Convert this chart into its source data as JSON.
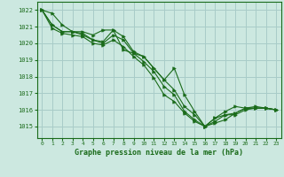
{
  "title": "Graphe pression niveau de la mer (hPa)",
  "background_color": "#cce8e0",
  "grid_color": "#a8ccc8",
  "line_color": "#1a6b1a",
  "x_ticks": [
    0,
    1,
    2,
    3,
    4,
    5,
    6,
    7,
    8,
    9,
    10,
    11,
    12,
    13,
    14,
    15,
    16,
    17,
    18,
    19,
    20,
    21,
    22,
    23
  ],
  "y_ticks": [
    1015,
    1016,
    1017,
    1018,
    1019,
    1020,
    1021,
    1022
  ],
  "ylim": [
    1014.3,
    1022.5
  ],
  "xlim": [
    -0.5,
    23.5
  ],
  "series": [
    [
      1022.0,
      1021.8,
      1021.1,
      1020.7,
      1020.7,
      1020.5,
      1020.8,
      1020.8,
      1020.4,
      1019.5,
      1019.2,
      1018.5,
      1017.8,
      1018.5,
      1016.9,
      1015.9,
      1015.0,
      1015.2,
      1015.4,
      1015.8,
      1016.1,
      1016.1,
      1016.1,
      1016.0
    ],
    [
      1022.0,
      1021.1,
      1020.7,
      1020.7,
      1020.6,
      1020.2,
      1020.1,
      1020.8,
      1019.6,
      1019.4,
      1019.2,
      1018.5,
      1017.8,
      1017.2,
      1016.2,
      1015.7,
      1015.0,
      1015.3,
      1015.7,
      1015.8,
      1016.1,
      1016.1,
      1016.1,
      1016.0
    ],
    [
      1022.0,
      1021.1,
      1020.7,
      1020.7,
      1020.5,
      1020.2,
      1020.0,
      1020.5,
      1020.2,
      1019.4,
      1018.9,
      1018.3,
      1017.4,
      1016.9,
      1015.9,
      1015.4,
      1015.0,
      1015.5,
      1015.9,
      1016.2,
      1016.1,
      1016.2,
      1016.1,
      1016.0
    ],
    [
      1022.0,
      1020.9,
      1020.6,
      1020.5,
      1020.4,
      1020.0,
      1019.9,
      1020.2,
      1019.8,
      1019.2,
      1018.7,
      1017.9,
      1016.9,
      1016.5,
      1015.8,
      1015.3,
      1015.0,
      1015.5,
      1015.7,
      1015.7,
      1016.0,
      1016.1,
      1016.1,
      1016.0
    ]
  ]
}
